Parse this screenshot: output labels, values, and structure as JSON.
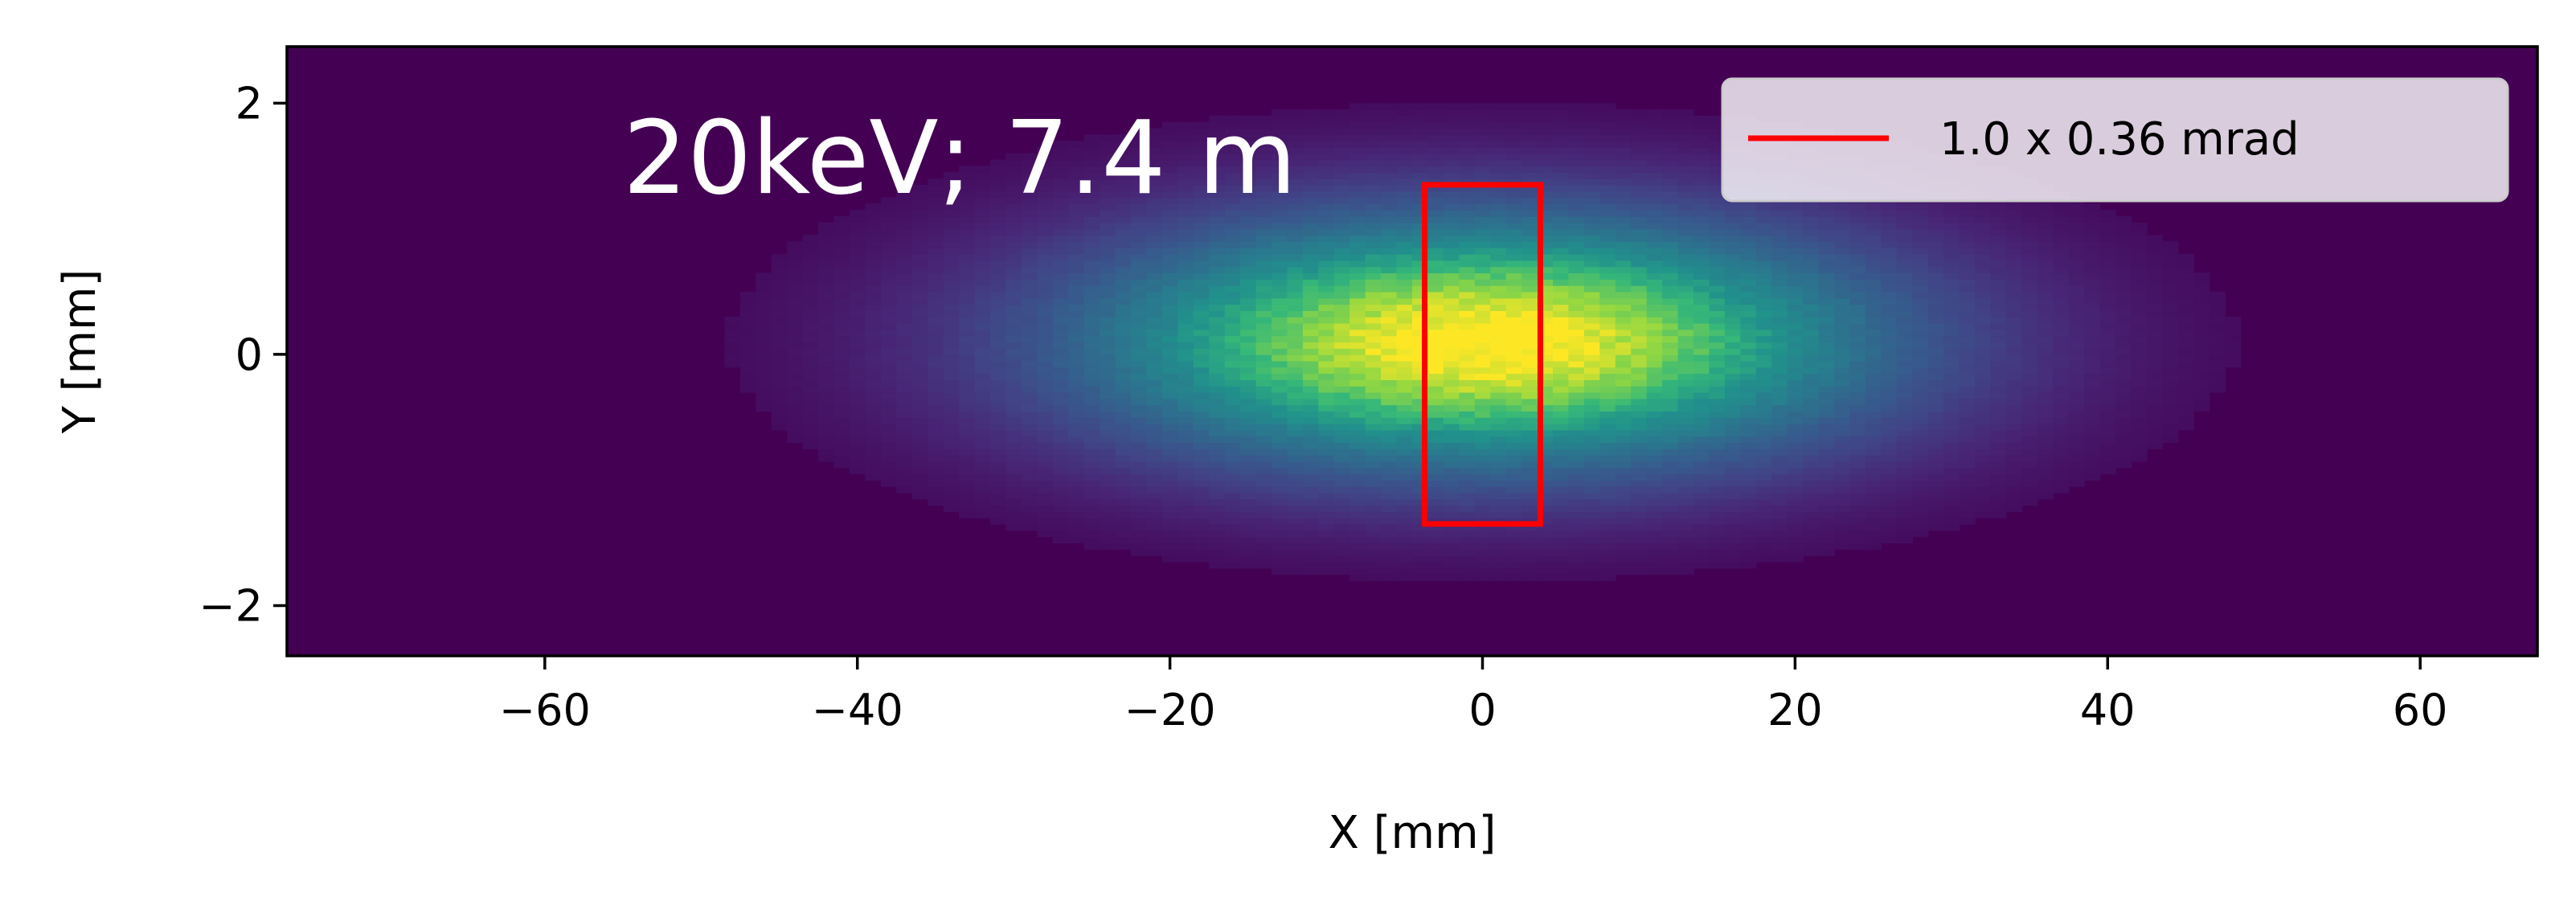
{
  "chart_data": {
    "type": "heatmap",
    "title": "",
    "xlabel": "X [mm]",
    "ylabel": "Y [mm]",
    "xlim": [
      -76.5,
      67.5
    ],
    "ylim": [
      -2.4,
      2.45
    ],
    "xticks": [
      -60,
      -40,
      -20,
      0,
      20,
      40,
      60
    ],
    "yticks": [
      -2,
      0,
      2
    ],
    "xtick_labels": [
      "−60",
      "−40",
      "−20",
      "0",
      "20",
      "40",
      "60"
    ],
    "ytick_labels": [
      "−2",
      "0",
      "2"
    ],
    "colormap": "viridis",
    "distribution": {
      "shape": "2D gaussian beam profile",
      "center_x": 0,
      "center_y": 0.1,
      "sigma_x_mm": 19,
      "sigma_y_mm": 0.75
    },
    "annotation": "20keV; 7.4 m",
    "aperture": {
      "x": [
        -3.7,
        3.7
      ],
      "y": [
        -1.35,
        1.35
      ],
      "color": "#ff0000"
    },
    "legend": {
      "position": "top-right",
      "entries": [
        {
          "label": "1.0 x 0.36 mrad",
          "color": "#ff0000"
        }
      ]
    },
    "grid": false
  }
}
